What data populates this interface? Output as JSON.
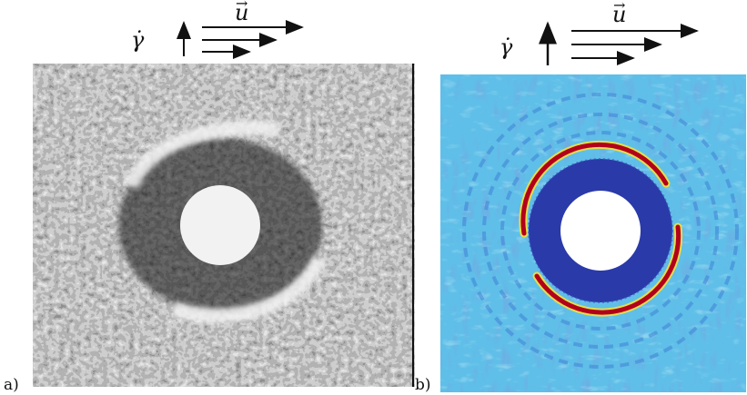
{
  "figure": {
    "panel_a": {
      "label": "a)",
      "shear_rate_symbol": "γ̇",
      "velocity_symbol": "u",
      "style": "grayscale pixel noise",
      "colors": {
        "dark": "#1f1f1f",
        "light": "#f0f0f0",
        "disk": "#f2f2f2"
      }
    },
    "panel_b": {
      "label": "b)",
      "shear_rate_symbol": "γ̇",
      "velocity_symbol": "u",
      "style": "colormap",
      "colors": {
        "background": "#5fbfe8",
        "inner_ring": "#2a3aa8",
        "band_red": "#b3001b",
        "band_yellow": "#f2e23a",
        "streak_dark": "#2f5fbf",
        "streak_light": "#8ed8f2"
      }
    }
  }
}
